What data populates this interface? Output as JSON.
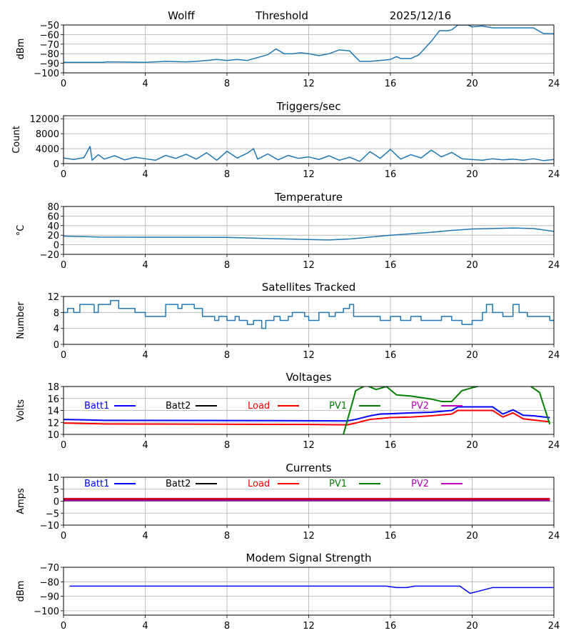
{
  "header": {
    "station": "Wolff",
    "metric": "Threshold",
    "date": "2025/12/16"
  },
  "colors": {
    "default": "#1f77b4",
    "Batt1": "#0000ff",
    "Batt2": "#000000",
    "Load": "#ff0000",
    "PV1": "#008000",
    "PV2": "#bf00bf",
    "modem": "#0000ff"
  },
  "chart_data": [
    {
      "type": "line",
      "title": "",
      "ylabel": "dBm",
      "xlim": [
        0,
        24
      ],
      "ylim": [
        -100,
        -50
      ],
      "xticks": [
        0,
        4,
        8,
        12,
        16,
        20,
        24
      ],
      "yticks": [
        -100,
        -90,
        -80,
        -70,
        -60,
        -50
      ],
      "series": [
        {
          "name": "Threshold",
          "color": "#1f77b4",
          "x": [
            0,
            2,
            2.1,
            4,
            4.5,
            5,
            6,
            6.5,
            7,
            7.5,
            8,
            8.5,
            9,
            9.5,
            10,
            10.4,
            10.8,
            11.2,
            11.6,
            12,
            12.5,
            13,
            13.5,
            14,
            14.5,
            15,
            15.5,
            16,
            16.3,
            16.5,
            17,
            17.4,
            18,
            18.4,
            18.8,
            19,
            19.3,
            19.8,
            20,
            20.5,
            21,
            23,
            23.5,
            24
          ],
          "y": [
            -89,
            -89,
            -88.5,
            -89,
            -88.5,
            -88,
            -88.5,
            -88,
            -87,
            -86,
            -87,
            -86,
            -87,
            -84,
            -81,
            -75,
            -80,
            -80,
            -79,
            -80,
            -82,
            -80,
            -76,
            -77,
            -88,
            -88,
            -87,
            -86,
            -83,
            -85,
            -85,
            -81,
            -67,
            -56,
            -56,
            -55,
            -50,
            -50,
            -52,
            -51,
            -53,
            -53,
            -59,
            -59
          ]
        }
      ]
    },
    {
      "type": "line",
      "title": "Triggers/sec",
      "ylabel": "Count",
      "xlim": [
        0,
        24
      ],
      "ylim": [
        0,
        12800
      ],
      "xticks": [
        0,
        4,
        8,
        12,
        16,
        20,
        24
      ],
      "yticks": [
        0,
        4000,
        8000,
        12000
      ],
      "series": [
        {
          "name": "Triggers",
          "color": "#1f77b4",
          "x": [
            0,
            0.5,
            1,
            1.3,
            1.4,
            1.7,
            2,
            2.5,
            3,
            3.5,
            4,
            4.5,
            5,
            5.5,
            6,
            6.5,
            7,
            7.5,
            8,
            8.5,
            9,
            9.3,
            9.5,
            10,
            10.5,
            11,
            11.5,
            12,
            12.5,
            13,
            13.5,
            14,
            14.5,
            15,
            15.5,
            16,
            16.5,
            17,
            17.5,
            18,
            18.5,
            19,
            19.5,
            20,
            20.5,
            21,
            21.5,
            22,
            22.5,
            23,
            23.5,
            24
          ],
          "y": [
            1500,
            1100,
            1600,
            4600,
            900,
            2400,
            1200,
            2100,
            1000,
            1700,
            1300,
            900,
            2200,
            1400,
            2500,
            1200,
            2900,
            900,
            3300,
            1500,
            2800,
            4000,
            1200,
            2600,
            1000,
            2200,
            1400,
            1800,
            1100,
            2100,
            900,
            1700,
            600,
            3200,
            1400,
            3800,
            1200,
            2400,
            1500,
            3600,
            1800,
            3000,
            1300,
            1100,
            900,
            1300,
            1000,
            1200,
            900,
            1300,
            800,
            1100
          ]
        }
      ]
    },
    {
      "type": "line",
      "title": "Temperature",
      "ylabel": "°C",
      "xlim": [
        0,
        24
      ],
      "ylim": [
        -20,
        80
      ],
      "xticks": [
        0,
        4,
        8,
        12,
        16,
        20,
        24
      ],
      "yticks": [
        -20,
        0,
        20,
        40,
        60,
        80
      ],
      "series": [
        {
          "name": "Temperature",
          "color": "#1f77b4",
          "x": [
            0,
            1.8,
            8,
            10,
            12,
            13,
            14,
            15,
            16,
            17,
            18,
            19,
            20,
            21,
            22,
            23,
            24
          ],
          "y": [
            18,
            16,
            15.5,
            13,
            11,
            10,
            12,
            16,
            20,
            23,
            26,
            30,
            33,
            34,
            35,
            34,
            28
          ]
        }
      ]
    },
    {
      "type": "line",
      "step": true,
      "title": "Satellites Tracked",
      "ylabel": "Number",
      "xlim": [
        0,
        24
      ],
      "ylim": [
        0,
        12
      ],
      "xticks": [
        0,
        4,
        8,
        12,
        16,
        20,
        24
      ],
      "yticks": [
        0,
        4,
        8,
        12
      ],
      "series": [
        {
          "name": "Satellites",
          "color": "#1f77b4",
          "x": [
            0,
            0.2,
            0.5,
            0.8,
            1.5,
            1.7,
            2.3,
            2.7,
            3.5,
            4,
            4.6,
            5,
            5.6,
            5.8,
            6.4,
            6.8,
            7.4,
            7.6,
            8,
            8.4,
            8.6,
            9,
            9.3,
            9.7,
            9.9,
            10.3,
            10.6,
            11,
            11.2,
            11.8,
            12,
            12.5,
            13,
            13.3,
            13.7,
            14,
            14.2,
            15.5,
            16,
            16.5,
            17,
            17.5,
            18.5,
            19,
            19.5,
            20,
            20.5,
            20.7,
            21,
            21.5,
            22,
            22.3,
            22.7,
            23.8,
            24
          ],
          "y": [
            8,
            9,
            8,
            10,
            8,
            10,
            11,
            9,
            8,
            7,
            7,
            10,
            9,
            10,
            9,
            7,
            6,
            7,
            6,
            7,
            6,
            5,
            6,
            4,
            6,
            7,
            6,
            7,
            8,
            7,
            6,
            8,
            7,
            8,
            9,
            10,
            7,
            6,
            7,
            6,
            7,
            6,
            7,
            6,
            5,
            6,
            8,
            10,
            8,
            7,
            10,
            8,
            7,
            6,
            6
          ]
        }
      ]
    },
    {
      "type": "line",
      "title": "Voltages",
      "ylabel": "Volts",
      "xlim": [
        0,
        24
      ],
      "ylim": [
        10,
        18
      ],
      "xticks": [
        0,
        4,
        8,
        12,
        16,
        20,
        24
      ],
      "yticks": [
        10,
        12,
        14,
        16,
        18
      ],
      "legend": "inline-top",
      "series": [
        {
          "name": "Batt1",
          "color": "#0000ff",
          "x": [
            0,
            2,
            10,
            13.9,
            14.3,
            15,
            15.5,
            16,
            17,
            18,
            19,
            19.3,
            21,
            21.5,
            22,
            22.5,
            23,
            23.8
          ],
          "y": [
            12.5,
            12.35,
            12.3,
            12.25,
            12.5,
            13.1,
            13.4,
            13.45,
            13.6,
            13.7,
            14,
            14.6,
            14.6,
            13.4,
            14.1,
            13.2,
            13.1,
            12.8
          ]
        },
        {
          "name": "Batt2",
          "color": "#000000",
          "x": [],
          "y": []
        },
        {
          "name": "Load",
          "color": "#ff0000",
          "x": [
            0,
            2,
            12,
            13.9,
            14.3,
            15,
            16,
            17,
            18,
            19,
            19.3,
            21,
            21.5,
            22,
            22.5,
            23.8
          ],
          "y": [
            11.9,
            11.75,
            11.65,
            11.6,
            11.9,
            12.5,
            12.8,
            12.9,
            13.1,
            13.4,
            14,
            14,
            12.9,
            13.6,
            12.6,
            12.1
          ]
        },
        {
          "name": "PV1",
          "color": "#008000",
          "x": [
            13.7,
            14.3,
            14.8,
            15.3,
            15.8,
            16.3,
            17,
            18,
            18.5,
            19,
            19.5,
            20,
            20.5,
            22.8,
            23.3,
            23.8
          ],
          "y": [
            10,
            17.3,
            18.2,
            17.5,
            18,
            16.6,
            16.4,
            15.9,
            15.5,
            15.5,
            17.3,
            17.8,
            18.2,
            18.2,
            17,
            11.7
          ]
        },
        {
          "name": "PV2",
          "color": "#bf00bf",
          "x": [],
          "y": []
        }
      ]
    },
    {
      "type": "line",
      "title": "Currents",
      "ylabel": "Amps",
      "xlim": [
        0,
        24
      ],
      "ylim": [
        -10,
        10
      ],
      "xticks": [
        0,
        4,
        8,
        12,
        16,
        20,
        24
      ],
      "yticks": [
        -10,
        -5,
        0,
        5,
        10
      ],
      "legend": "inline-top",
      "series": [
        {
          "name": "Batt1",
          "color": "#0000ff",
          "x": [
            0,
            23.8
          ],
          "y": [
            1.1,
            1.1
          ]
        },
        {
          "name": "Batt2",
          "color": "#000000",
          "x": [
            0,
            23.8
          ],
          "y": [
            0.6,
            0.6
          ]
        },
        {
          "name": "Load",
          "color": "#ff0000",
          "x": [
            0,
            23.8
          ],
          "y": [
            1.0,
            1.0
          ]
        },
        {
          "name": "PV1",
          "color": "#008000",
          "x": [
            0,
            23.8
          ],
          "y": [
            0.2,
            0.2
          ]
        },
        {
          "name": "PV2",
          "color": "#bf00bf",
          "x": [
            0,
            23.8
          ],
          "y": [
            0.3,
            0.3
          ]
        }
      ]
    },
    {
      "type": "line",
      "title": "Modem Signal Strength",
      "ylabel": "dBm",
      "xlim": [
        0,
        24
      ],
      "ylim": [
        -103,
        -70
      ],
      "xticks": [
        0,
        4,
        8,
        12,
        16,
        20,
        24
      ],
      "yticks": [
        -100,
        -90,
        -80,
        -70
      ],
      "series": [
        {
          "name": "Modem",
          "color": "#0000ff",
          "x": [
            0.3,
            15.8,
            16.3,
            16.8,
            17.2,
            19.4,
            19.9,
            21,
            24
          ],
          "y": [
            -83,
            -83,
            -84,
            -84,
            -83,
            -83,
            -88,
            -84,
            -84
          ]
        }
      ]
    }
  ]
}
